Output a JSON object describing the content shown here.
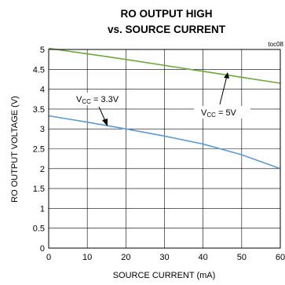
{
  "chart_data": {
    "type": "line",
    "title_line1": "RO OUTPUT HIGH",
    "title_line2": "vs. SOURCE CURRENT",
    "figure_id": "toc08",
    "xlabel": "SOURCE CURRENT (mA)",
    "ylabel": "RO OUTPUT VOLTAGE (V)",
    "xlim": [
      0,
      60
    ],
    "ylim": [
      0,
      5
    ],
    "x_ticks": [
      "0",
      "10",
      "20",
      "30",
      "40",
      "50",
      "60"
    ],
    "y_ticks": [
      "0",
      "0.5",
      "1",
      "1.5",
      "2",
      "2.5",
      "3",
      "3.5",
      "4",
      "4.5",
      "5"
    ],
    "grid": true,
    "series": [
      {
        "name": "VCC = 5V",
        "label_main": "V",
        "label_sub": "CC",
        "label_rest": " = 5V",
        "color": "#6aaa3a",
        "x": [
          0,
          10,
          20,
          30,
          40,
          50,
          60
        ],
        "y": [
          5.03,
          4.89,
          4.75,
          4.6,
          4.45,
          4.3,
          4.15
        ]
      },
      {
        "name": "VCC = 3.3V",
        "label_main": "V",
        "label_sub": "CC",
        "label_rest": " = 3.3V",
        "color": "#5b9bd5",
        "x": [
          0,
          10,
          20,
          30,
          40,
          50,
          60
        ],
        "y": [
          3.33,
          3.17,
          3.0,
          2.82,
          2.62,
          2.35,
          2.0
        ]
      }
    ]
  }
}
